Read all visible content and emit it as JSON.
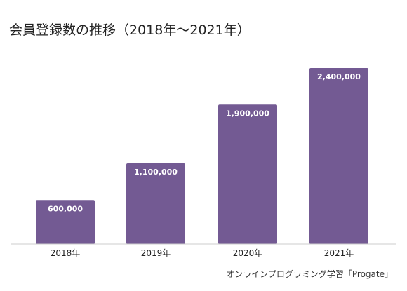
{
  "chart_data": {
    "type": "bar",
    "title": "会員登録数の推移（2018年〜2021年）",
    "xlabel": "",
    "ylabel": "",
    "categories": [
      "2018年",
      "2019年",
      "2020年",
      "2021年"
    ],
    "values": [
      600000,
      1100000,
      1900000,
      2400000
    ],
    "value_labels": [
      "600,000",
      "1,100,000",
      "1,900,000",
      "2,400,000"
    ],
    "ylim": [
      0,
      2400000
    ],
    "grid": false,
    "legend": "none",
    "bar_color": "#735a93",
    "source": "オンラインプログラミング学習「Progate」"
  }
}
